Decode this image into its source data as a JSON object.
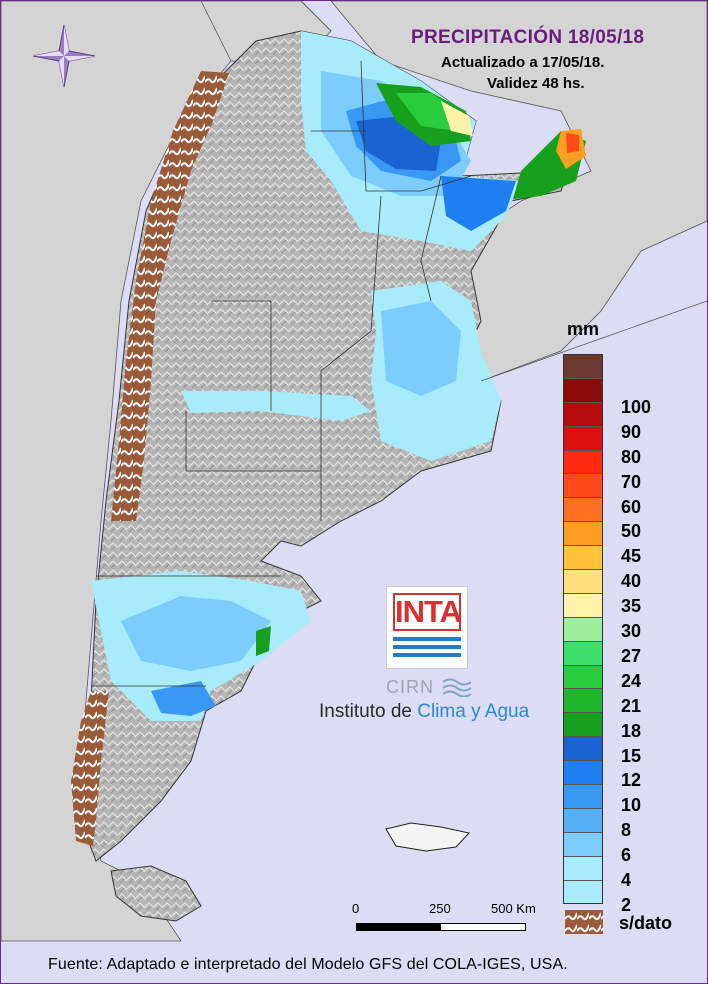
{
  "header": {
    "title": "PRECIPITACIÓN 18/05/18",
    "updated": "Actualizado a 17/05/18.",
    "validity": "Validez 48 hs."
  },
  "legend": {
    "unit": "mm",
    "classes": [
      {
        "label": "",
        "color": "#6b3a2e"
      },
      {
        "label": "100",
        "color": "#8b0a0a"
      },
      {
        "label": "90",
        "color": "#b80c0c"
      },
      {
        "label": "80",
        "color": "#dd1010"
      },
      {
        "label": "70",
        "color": "#ff2a10"
      },
      {
        "label": "60",
        "color": "#ff4a1a"
      },
      {
        "label": "50",
        "color": "#ff7020"
      },
      {
        "label": "45",
        "color": "#ff9e20"
      },
      {
        "label": "40",
        "color": "#ffc23a"
      },
      {
        "label": "35",
        "color": "#ffe07a"
      },
      {
        "label": "30",
        "color": "#fff3a8"
      },
      {
        "label": "27",
        "color": "#9cf09c"
      },
      {
        "label": "24",
        "color": "#3ee06a"
      },
      {
        "label": "21",
        "color": "#28cc3c"
      },
      {
        "label": "18",
        "color": "#1fb52c"
      },
      {
        "label": "15",
        "color": "#17a01e"
      },
      {
        "label": "12",
        "color": "#1a64d2"
      },
      {
        "label": "10",
        "color": "#1f7ef0"
      },
      {
        "label": "8",
        "color": "#3a98f5"
      },
      {
        "label": "6",
        "color": "#56b0f8"
      },
      {
        "label": "4",
        "color": "#7ccdfb"
      },
      {
        "label": "2",
        "color": "#a8ecfb"
      },
      {
        "label": "",
        "color": "#a8ecfb"
      }
    ],
    "no_data_label": "s/dato",
    "no_data_color": "#9b5a3a"
  },
  "scale_bar": {
    "labels": [
      "0",
      "250",
      "500 Km"
    ]
  },
  "logo": {
    "inta": "INTA",
    "cirn": "CIRN",
    "institute_prefix": "Instituto de ",
    "institute_accent": "Clima y Agua"
  },
  "colors": {
    "ocean": "#dcdcf4",
    "neighbor_land": "#d4d4d4",
    "argentina_relief": "#b9b9b9",
    "frame": "#6a2a8a",
    "title": "#6a1b7f"
  },
  "footer": "Fuente: Adaptado e interpretado del Modelo GFS del COLA-IGES, USA."
}
